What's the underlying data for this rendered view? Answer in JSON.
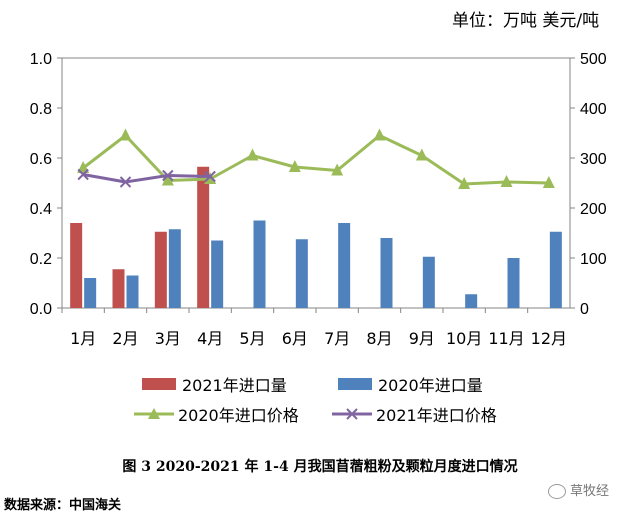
{
  "unit_label": "单位：万吨 美元/吨",
  "caption": "图 3 2020-2021 年 1-4 月我国苜蓿粗粉及颗粒月度进口情况",
  "source": "数据来源：中国海关",
  "watermark": "草牧经",
  "colors": {
    "bar2021": "#c0504d",
    "bar2020": "#4f81bd",
    "line2020": "#9bbb59",
    "line2021": "#8064a2",
    "axis": "#868686"
  },
  "chart_data": {
    "type": "bar",
    "categories": [
      "1月",
      "2月",
      "3月",
      "4月",
      "5月",
      "6月",
      "7月",
      "8月",
      "9月",
      "10月",
      "11月",
      "12月"
    ],
    "ylim_left": [
      0,
      1.0
    ],
    "ylim_right": [
      0,
      500
    ],
    "yticks_left": [
      "0.0",
      "0.2",
      "0.4",
      "0.6",
      "0.8",
      "1.0"
    ],
    "yticks_right": [
      "0",
      "100",
      "200",
      "300",
      "400",
      "500"
    ],
    "series": [
      {
        "name": "2021年进口量",
        "kind": "bar",
        "axis": "left",
        "values": [
          0.34,
          0.155,
          0.305,
          0.565,
          null,
          null,
          null,
          null,
          null,
          null,
          null,
          null
        ]
      },
      {
        "name": "2020年进口量",
        "kind": "bar",
        "axis": "left",
        "values": [
          0.12,
          0.13,
          0.315,
          0.27,
          0.35,
          0.275,
          0.34,
          0.28,
          0.205,
          0.055,
          0.2,
          0.305
        ]
      },
      {
        "name": "2020年进口价格",
        "kind": "line",
        "axis": "right",
        "marker": "triangle",
        "values": [
          280,
          345,
          255,
          258,
          305,
          282,
          275,
          345,
          305,
          248,
          252,
          250
        ]
      },
      {
        "name": "2021年进口价格",
        "kind": "line",
        "axis": "right",
        "marker": "x",
        "values": [
          267,
          252,
          265,
          263,
          null,
          null,
          null,
          null,
          null,
          null,
          null,
          null
        ]
      }
    ],
    "legend_position": "bottom",
    "grid": false
  }
}
